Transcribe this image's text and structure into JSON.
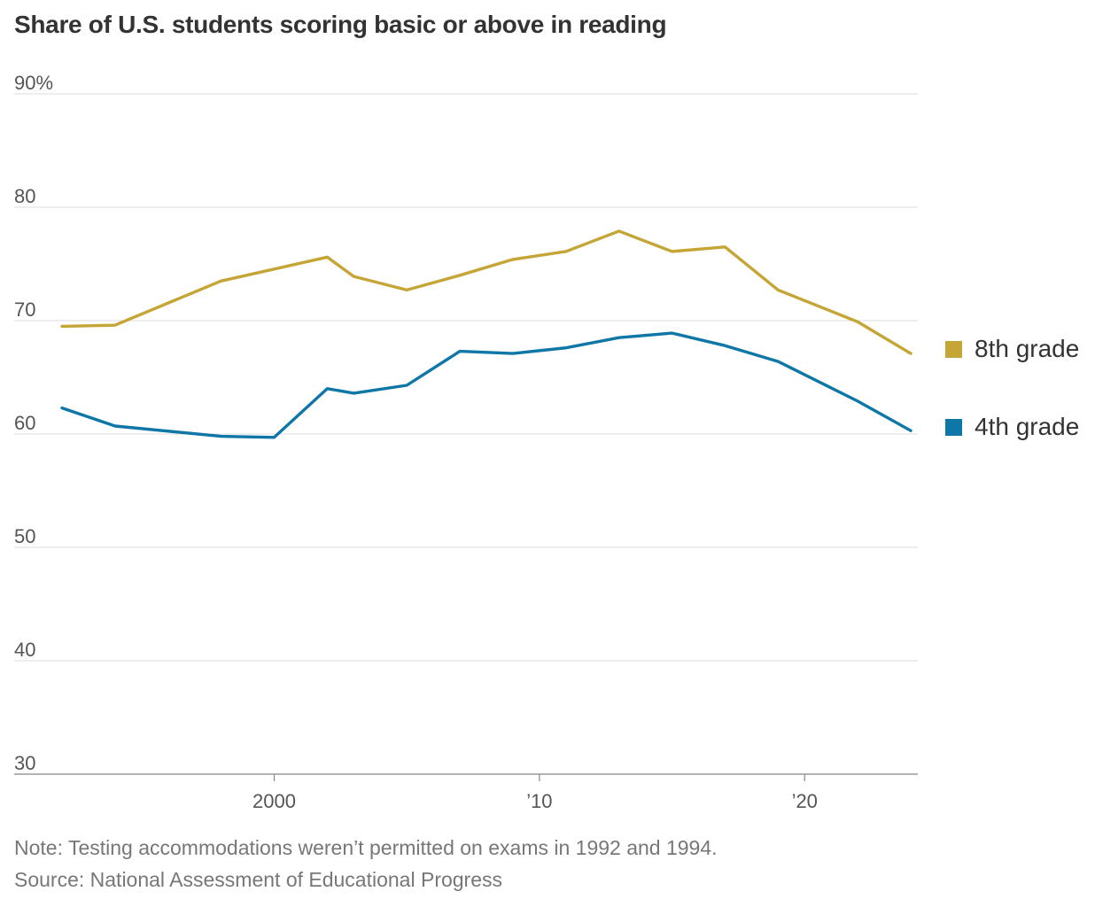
{
  "chart_data": {
    "type": "line",
    "title": "Share of U.S. students scoring basic or above in reading",
    "xlabel": "",
    "ylabel": "",
    "ylim": [
      30,
      90
    ],
    "y_ticks": [
      {
        "value": 90,
        "label": "90%"
      },
      {
        "value": 80,
        "label": "80"
      },
      {
        "value": 70,
        "label": "70"
      },
      {
        "value": 60,
        "label": "60"
      },
      {
        "value": 50,
        "label": "50"
      },
      {
        "value": 40,
        "label": "40"
      },
      {
        "value": 30,
        "label": "30"
      }
    ],
    "xlim": [
      1992,
      2024
    ],
    "x_ticks": [
      {
        "value": 2000,
        "label": "2000"
      },
      {
        "value": 2010,
        "label": "’10"
      },
      {
        "value": 2020,
        "label": "’20"
      }
    ],
    "grid": true,
    "legend_position": "right",
    "series": [
      {
        "name": "8th grade",
        "color": "#C4A535",
        "points": [
          [
            1992,
            69.5
          ],
          [
            1994,
            69.6
          ],
          [
            1998,
            73.5
          ],
          [
            2002,
            75.6
          ],
          [
            2003,
            73.9
          ],
          [
            2005,
            72.7
          ],
          [
            2007,
            74.0
          ],
          [
            2009,
            75.4
          ],
          [
            2011,
            76.1
          ],
          [
            2013,
            77.9
          ],
          [
            2015,
            76.1
          ],
          [
            2017,
            76.5
          ],
          [
            2019,
            72.7
          ],
          [
            2022,
            69.9
          ],
          [
            2024,
            67.1
          ]
        ]
      },
      {
        "name": "4th grade",
        "color": "#0F76A8",
        "points": [
          [
            1992,
            62.3
          ],
          [
            1994,
            60.7
          ],
          [
            1998,
            59.8
          ],
          [
            2000,
            59.7
          ],
          [
            2002,
            64.0
          ],
          [
            2003,
            63.6
          ],
          [
            2005,
            64.3
          ],
          [
            2007,
            67.3
          ],
          [
            2009,
            67.1
          ],
          [
            2011,
            67.6
          ],
          [
            2013,
            68.5
          ],
          [
            2015,
            68.9
          ],
          [
            2017,
            67.8
          ],
          [
            2019,
            66.4
          ],
          [
            2022,
            62.9
          ],
          [
            2024,
            60.3
          ]
        ]
      }
    ]
  },
  "footer": {
    "note": "Note: Testing accommodations weren’t permitted on exams in 1992 and 1994.",
    "source": "Source: National Assessment of Educational Progress"
  }
}
